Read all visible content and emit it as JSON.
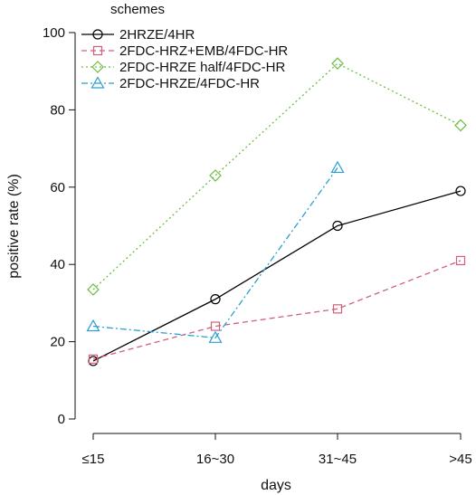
{
  "chart_data": {
    "type": "line",
    "title": "",
    "xlabel": "days",
    "ylabel": "positive rate (%)",
    "categories": [
      "≤15",
      "16~30",
      "31~45",
      ">45"
    ],
    "ylim": [
      0,
      100
    ],
    "yticks": [
      0,
      20,
      40,
      60,
      80,
      100
    ],
    "grid": false,
    "legend": {
      "title": "schemes",
      "placement": "top-left"
    },
    "series": [
      {
        "name": "2HRZE/4HR",
        "color": "#000000",
        "marker": "circle",
        "dash": "solid",
        "values": [
          15,
          31,
          50,
          59
        ]
      },
      {
        "name": "2FDC-HRZ+EMB/4FDC-HR",
        "color": "#d0607a",
        "marker": "square",
        "dash": "dashed",
        "values": [
          15.5,
          24,
          28.5,
          41
        ]
      },
      {
        "name": "2FDC-HRZE half/4FDC-HR",
        "color": "#6cbd45",
        "marker": "diamond",
        "dash": "dotted",
        "values": [
          33.5,
          63,
          92,
          76
        ]
      },
      {
        "name": "2FDC-HRZE/4FDC-HR",
        "color": "#2a9fd0",
        "marker": "triangle",
        "dash": "dashdot",
        "values": [
          24,
          21,
          65,
          null
        ]
      }
    ]
  }
}
